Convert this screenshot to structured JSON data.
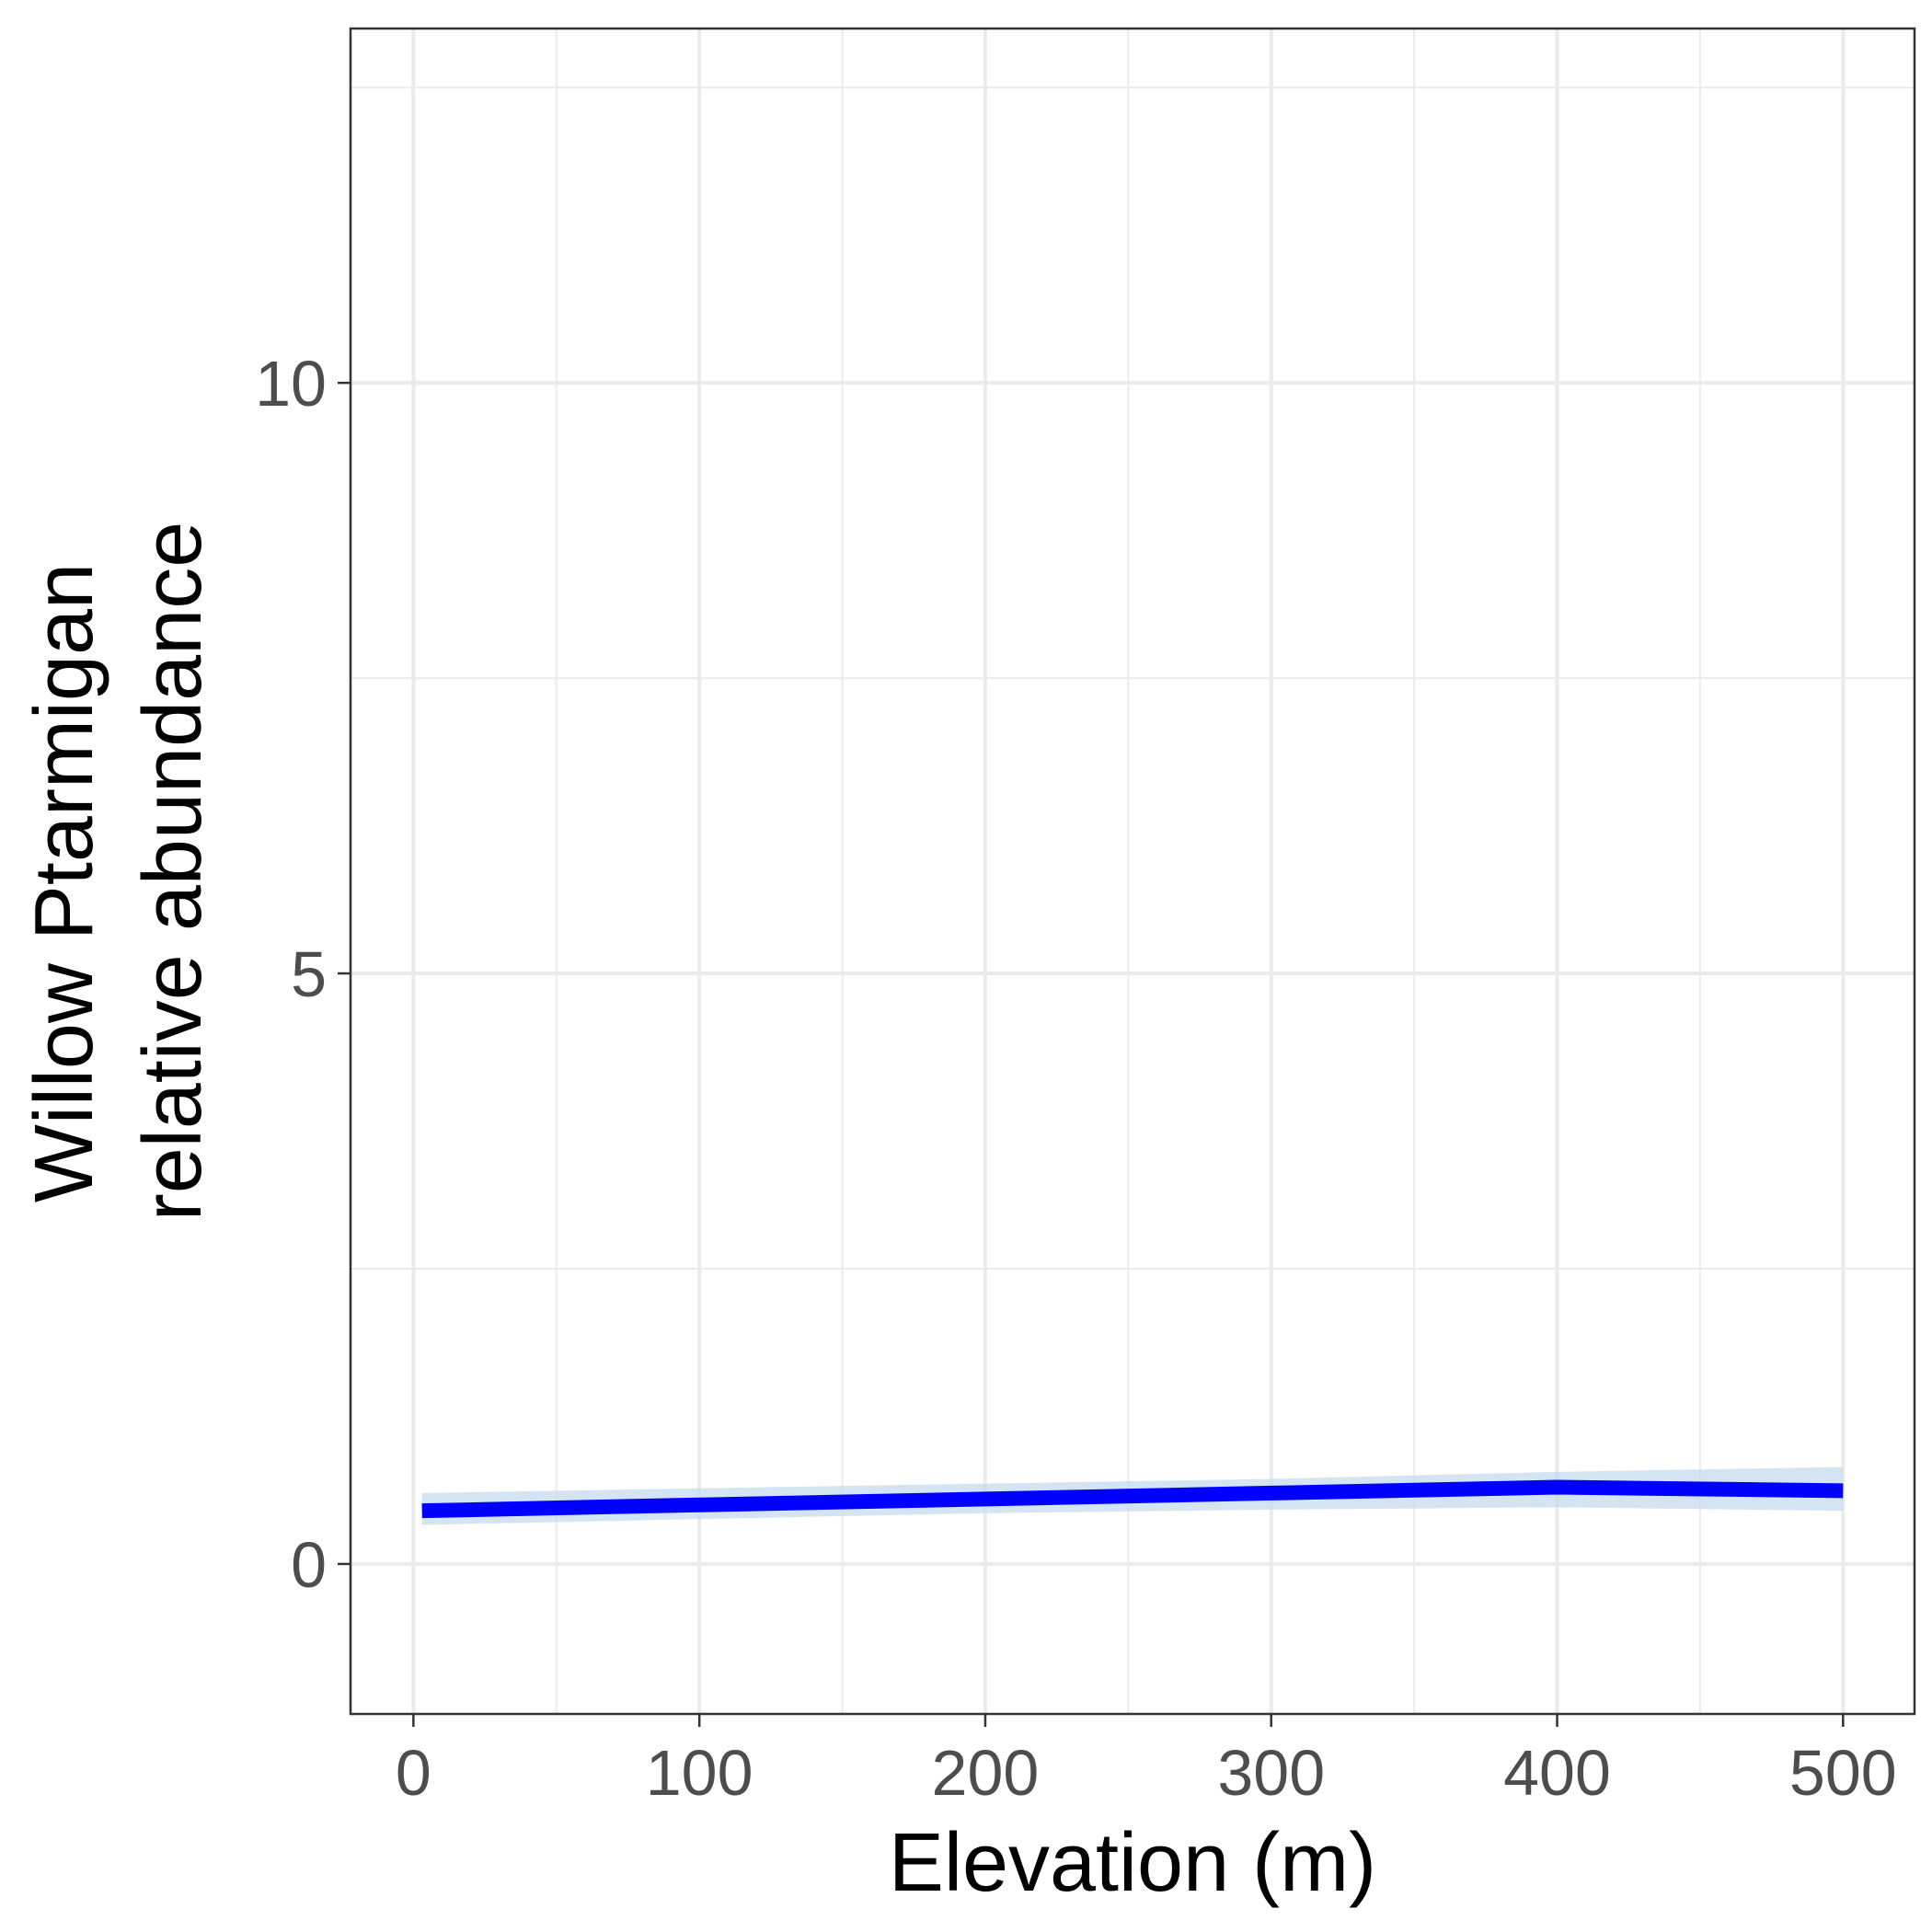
{
  "chart_data": {
    "type": "line",
    "title": "",
    "xlabel": "Elevation (m)",
    "ylabel_lines": [
      "Willow Ptarmigan",
      "relative abundance"
    ],
    "xlim": [
      -22,
      525
    ],
    "ylim": [
      -1.27,
      13.0
    ],
    "x_ticks": [
      0,
      100,
      200,
      300,
      400,
      500
    ],
    "x_tick_labels": [
      "0",
      "100",
      "200",
      "300",
      "400",
      "500"
    ],
    "x_minor_ticks": [
      50,
      150,
      250,
      350,
      450
    ],
    "y_ticks": [
      0,
      5,
      10
    ],
    "y_tick_labels": [
      "0",
      "5",
      "10"
    ],
    "y_minor_ticks": [
      2.5,
      7.5,
      12.5
    ],
    "grid": true,
    "series": [
      {
        "x": [
          3,
          100,
          200,
          300,
          400,
          500
        ],
        "y": [
          0.45,
          0.5,
          0.55,
          0.6,
          0.65,
          0.62
        ],
        "ribbon_lower": [
          0.33,
          0.38,
          0.43,
          0.46,
          0.48,
          0.45
        ],
        "ribbon_upper": [
          0.6,
          0.64,
          0.68,
          0.72,
          0.78,
          0.82
        ],
        "color": "#0000ff",
        "ribbon_color": "#c6dbef"
      }
    ]
  }
}
